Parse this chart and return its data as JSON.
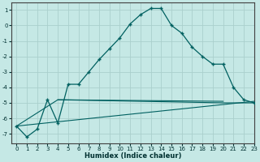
{
  "xlabel": "Humidex (Indice chaleur)",
  "ylabel": "",
  "bg_color": "#c5e8e5",
  "grid_color": "#aacfcc",
  "line_color": "#006060",
  "xlim": [
    -0.5,
    23
  ],
  "ylim": [
    -7.6,
    1.5
  ],
  "yticks": [
    1,
    0,
    -1,
    -2,
    -3,
    -4,
    -5,
    -6,
    -7
  ],
  "xticks": [
    0,
    1,
    2,
    3,
    4,
    5,
    6,
    7,
    8,
    9,
    10,
    11,
    12,
    13,
    14,
    15,
    16,
    17,
    18,
    19,
    20,
    21,
    22,
    23
  ],
  "main_x": [
    0,
    1,
    2,
    3,
    4,
    5,
    6,
    7,
    8,
    9,
    10,
    11,
    12,
    13,
    14,
    15,
    16,
    17,
    18,
    19,
    20,
    21,
    22,
    23
  ],
  "main_y": [
    -6.5,
    -7.2,
    -6.7,
    -4.8,
    -6.3,
    -3.8,
    -3.8,
    -3.0,
    -2.2,
    -1.5,
    -0.8,
    0.1,
    0.7,
    1.1,
    1.1,
    0.0,
    -0.5,
    -1.4,
    -2.0,
    -2.5,
    -2.5,
    -4.0,
    -4.8,
    -5.0
  ],
  "line2_x": [
    0,
    4,
    20,
    23
  ],
  "line2_y": [
    -6.5,
    -4.8,
    -5.0,
    -5.0
  ],
  "line3_x": [
    0,
    23
  ],
  "line3_y": [
    -6.5,
    -4.9
  ],
  "line4_x": [
    4,
    20
  ],
  "line4_y": [
    -4.8,
    -4.9
  ]
}
